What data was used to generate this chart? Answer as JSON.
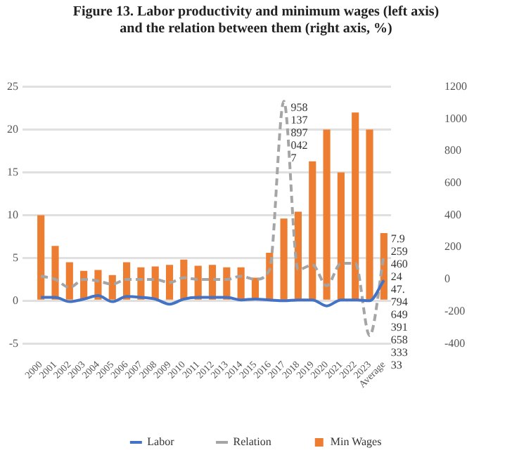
{
  "chart_data": {
    "type": "bar",
    "title": "Figure 13. Labor productivity and minimum wages (left axis) and the relation between them (right axis, %)",
    "categories": [
      "2000",
      "2001",
      "2002",
      "2003",
      "2004",
      "2005",
      "2006",
      "2007",
      "2008",
      "2009",
      "2010",
      "2011",
      "2012",
      "2013",
      "2014",
      "2015",
      "2016",
      "2017",
      "2018",
      "2019",
      "2020",
      "2021",
      "2022",
      "2023",
      "Average"
    ],
    "series": [
      {
        "name": "Min Wages",
        "color": "#ed7d31",
        "values": [
          10.0,
          6.4,
          4.5,
          3.5,
          3.6,
          3.0,
          4.5,
          3.9,
          4.0,
          4.2,
          4.8,
          4.1,
          4.2,
          3.9,
          3.9,
          2.7,
          5.6,
          9.6,
          10.4,
          16.3,
          20.0,
          15.0,
          22.0,
          20.0,
          7.9
        ]
      },
      {
        "name": "Labor",
        "type": "line",
        "color": "#4472c4",
        "line_style": "solid",
        "values": [
          0.4,
          0.4,
          -0.1,
          0.2,
          0.6,
          -0.1,
          0.5,
          0.4,
          0.2,
          -0.4,
          0.2,
          0.4,
          0.4,
          0.4,
          0.1,
          0.2,
          0.1,
          0.0,
          0.1,
          0.1,
          -0.6,
          0.1,
          0.1,
          0.0,
          2.4
        ]
      },
      {
        "name": "Relation",
        "type": "line",
        "color": "#a5a5a5",
        "line_style": "dashed",
        "axis": "y2",
        "values": [
          20,
          0,
          -50,
          0,
          -10,
          -30,
          0,
          0,
          0,
          -20,
          10,
          0,
          0,
          0,
          20,
          0,
          60,
          1110,
          60,
          90,
          -40,
          100,
          100,
          -350,
          150
        ]
      }
    ],
    "ylim": [
      -5,
      25
    ],
    "yticks": [
      -5,
      0,
      5,
      10,
      15,
      20,
      25
    ],
    "y2lim": [
      -400,
      1200
    ],
    "y2ticks": [
      -400,
      -200,
      0,
      200,
      400,
      600,
      800,
      1000,
      1200
    ],
    "grid": "y",
    "legend": "bottom",
    "marker": "none",
    "annotations": [
      {
        "text": "958 137 897 042 7",
        "x": "2017",
        "y": 23.3
      },
      {
        "text": "7.9 259 460 24",
        "x": "Average",
        "y": 7.9
      },
      {
        "text": "47. 794",
        "x": "Average",
        "y": 5.8
      },
      {
        "text": "649 391 658 333 33",
        "x": "Average",
        "y": 2.4
      }
    ]
  }
}
